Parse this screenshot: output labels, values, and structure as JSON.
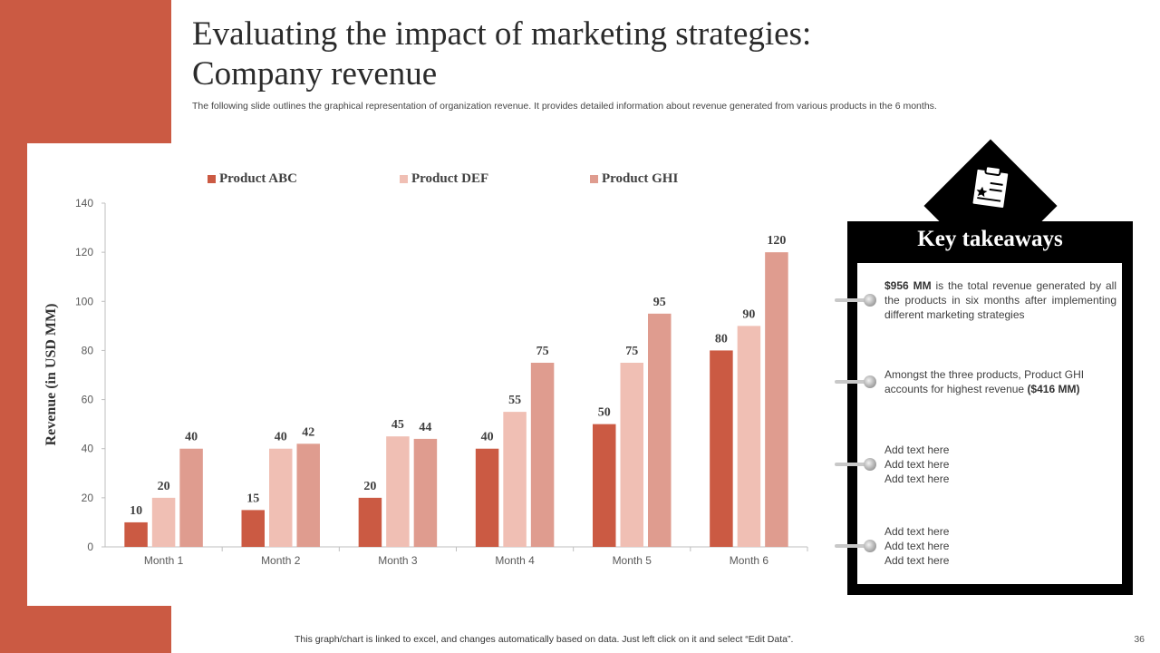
{
  "slide": {
    "title_line1": "Evaluating the impact of marketing strategies:",
    "title_line2": "Company revenue",
    "subtitle": "The following slide outlines the graphical representation of organization revenue. It provides detailed information about revenue generated from various products in the 6 months.",
    "footer": "This graph/chart is linked to excel,  and changes automatically based on data. Just left click on it and select “Edit Data”.",
    "page_number": "36"
  },
  "colors": {
    "brand": "#cb5a43",
    "series": [
      "#cb5a43",
      "#f0bfb4",
      "#df9c8f"
    ]
  },
  "chart_data": {
    "type": "bar",
    "title": "",
    "xlabel": "",
    "ylabel": "Revenue (in USD MM)",
    "categories": [
      "Month 1",
      "Month 2",
      "Month 3",
      "Month 4",
      "Month 5",
      "Month 6"
    ],
    "series": [
      {
        "name": "Product ABC",
        "values": [
          10,
          15,
          20,
          40,
          50,
          80
        ]
      },
      {
        "name": "Product DEF",
        "values": [
          20,
          40,
          45,
          55,
          75,
          90
        ]
      },
      {
        "name": "Product GHI",
        "values": [
          40,
          42,
          44,
          75,
          95,
          120
        ]
      }
    ],
    "ylim": [
      0,
      140
    ],
    "yticks": [
      0,
      20,
      40,
      60,
      80,
      100,
      120,
      140
    ],
    "legend": "top",
    "grid": false
  },
  "takeaways": {
    "heading": "Key takeaways",
    "icon": "clipboard-star-icon",
    "item1": {
      "bold": "$956 MM",
      "text": " is the total revenue  generated  by all the products in six months after implementing  different  marketing strategies"
    },
    "item2": {
      "text": "Amongst the three products, Product GHI accounts for highest revenue  ",
      "bold": "($416 MM)"
    },
    "item3": [
      "Add text here",
      "Add text here",
      "Add text here"
    ],
    "item4": [
      "Add text here",
      "Add text here",
      "Add text here"
    ]
  }
}
